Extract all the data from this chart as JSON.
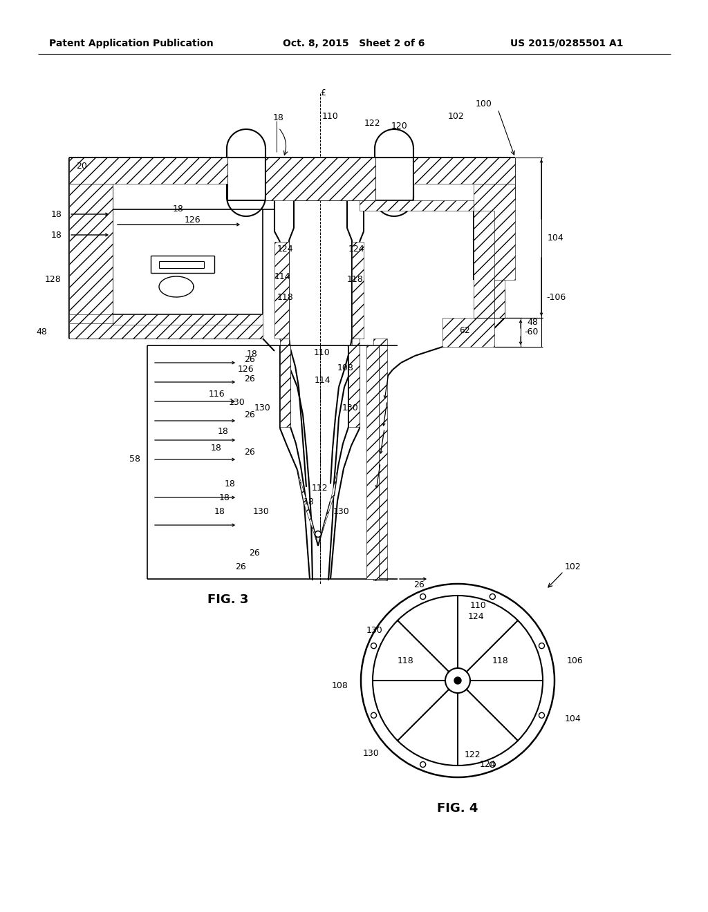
{
  "bg": "#ffffff",
  "lc": "#000000",
  "tc": "#000000",
  "header_left": "Patent Application Publication",
  "header_mid": "Oct. 8, 2015   Sheet 2 of 6",
  "header_right": "US 2015/0285501 A1",
  "fig3_caption": "FIG. 3",
  "fig4_caption": "FIG. 4",
  "hfs": 10,
  "fs": 9,
  "capfs": 13
}
